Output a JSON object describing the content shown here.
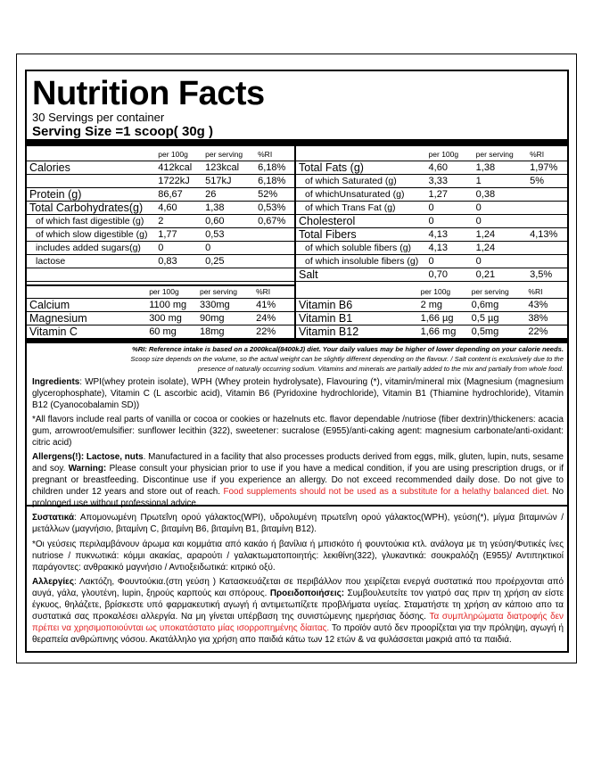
{
  "title": "Nutrition Facts",
  "servings": "30 Servings per container",
  "serving_size": "Serving Size =1 scoop( 30g )",
  "left_table": {
    "headers": [
      "",
      "per 100g",
      "per serving",
      "%RI"
    ],
    "rows": [
      {
        "type": "big",
        "cells": [
          "Calories",
          "412kcal",
          "123kcal",
          "6,18%"
        ]
      },
      {
        "type": "big",
        "cells": [
          "",
          "1722kJ",
          "517kJ",
          "6,18%"
        ]
      },
      {
        "type": "big",
        "cells": [
          "Protein (g)",
          "86,67",
          "26",
          "52%"
        ]
      },
      {
        "type": "big",
        "cells": [
          "Total Carbohydrates(g)",
          "4,60",
          "1,38",
          "0,53%"
        ]
      },
      {
        "type": "sub",
        "cells": [
          "of which fast digestible (g)",
          "2",
          "0,60",
          "0,67%"
        ]
      },
      {
        "type": "sub",
        "cells": [
          "of which slow digestible (g)",
          "1,77",
          "0,53",
          ""
        ]
      },
      {
        "type": "sub",
        "cells": [
          "includes added sugars(g)",
          "0",
          "0",
          ""
        ]
      },
      {
        "type": "sub",
        "cells": [
          "lactose",
          "0,83",
          "0,25",
          ""
        ]
      },
      {
        "type": "big",
        "cells": [
          "",
          "",
          "",
          ""
        ]
      }
    ]
  },
  "right_table": {
    "headers": [
      "",
      "per 100g",
      "per serving",
      "%RI"
    ],
    "rows": [
      {
        "type": "big",
        "cells": [
          "Total Fats (g)",
          "4,60",
          "1,38",
          "1,97%"
        ]
      },
      {
        "type": "sub",
        "cells": [
          "of which Saturated (g)",
          "3,33",
          "1",
          "5%"
        ]
      },
      {
        "type": "sub",
        "cells": [
          "of whichUnsaturated (g)",
          "1,27",
          "0,38",
          ""
        ]
      },
      {
        "type": "sub",
        "cells": [
          "of which Trans Fat (g)",
          "0",
          "0",
          ""
        ]
      },
      {
        "type": "big",
        "cells": [
          "Cholesterol",
          "0",
          "0",
          ""
        ]
      },
      {
        "type": "big",
        "cells": [
          "Total Fibers",
          "4,13",
          "1,24",
          "4,13%"
        ]
      },
      {
        "type": "sub",
        "cells": [
          "of which soluble fibers (g)",
          "4,13",
          "1,24",
          ""
        ]
      },
      {
        "type": "sub",
        "cells": [
          "of which insoluble fibers (g)",
          "0",
          "0",
          ""
        ]
      },
      {
        "type": "big",
        "cells": [
          "Salt",
          "0,70",
          "0,21",
          "3,5%"
        ]
      }
    ]
  },
  "left_vitamins": {
    "headers": [
      "",
      "per 100g",
      "per serving",
      "%RI"
    ],
    "rows": [
      {
        "type": "big",
        "cells": [
          "Calcium",
          "1100 mg",
          "330mg",
          "41%"
        ]
      },
      {
        "type": "big",
        "cells": [
          "Magnesium",
          "300 mg",
          "90mg",
          "24%"
        ]
      },
      {
        "type": "big",
        "cells": [
          "Vitamin C",
          "60 mg",
          "18mg",
          "22%"
        ]
      }
    ]
  },
  "right_vitamins": {
    "headers": [
      "",
      "per 100g",
      "per serving",
      "%RI"
    ],
    "rows": [
      {
        "type": "big",
        "cells": [
          "Vitamin B6",
          "2 mg",
          "0,6mg",
          "43%"
        ]
      },
      {
        "type": "big",
        "cells": [
          "Vitamin B1",
          "1,66 µg",
          "0,5 µg",
          "38%"
        ]
      },
      {
        "type": "big",
        "cells": [
          "Vitamin B12",
          "1,66 mg",
          "0,5mg",
          "22%"
        ]
      }
    ]
  },
  "notes": [
    "%RI: Reference intake is based on a 2000kcal(8400kJ) diet. Your daily values may be higher of lower depending on your calorie needs.",
    "Scoop size depends on the volume, so the actual weight can be slightly different depending on the flavour. / Salt content is exclusively due to the",
    "presence of naturally occurring sodium. Vitamins and minerals are partially added to the mix and partially from whole food."
  ],
  "en": {
    "ingredients_label": "Ingredients",
    "ingredients": ": WPI(whey protein isolate), WPH (Whey protein hydrolysate), Flavouring (*), vitamin/mineral mix (Magnesium (magnesium glycerophosphate), Vitamin C (L ascorbic acid), Vitamin B6 (Pyridoxine hydrochloride), Vitamin B1 (Thiamine  hydrochloride), Vitamin B12 (Cyanocobalamin SD))",
    "flavors": "*All flavors include real parts of vanilla or cocoa or cookies or hazelnuts etc. flavor dependable /nutriose (fiber dextrin)/thickeners: acacia gum, arrowroot/emulsifier: sunflower lecithin (322), sweetener: sucralose (E955)/anti-caking agent: magnesium carbonate/anti-oxidant: citric acid)",
    "allergens_label": "Allergens(!): Lactose, nuts",
    "allergens": ". Manufactured in a facility that also processes products derived from eggs, milk, gluten, lupin, nuts, sesame and soy.  ",
    "warning_label": "Warning:",
    "warning": " Please consult your physician prior to use if you have a medical condition, if you are using prescription drugs, or if pregnant or breastfeeding. Discontinue use if you experience an allergy. Do not exceed recommended daily dose. Do not give to children under 12 years and store out of reach. ",
    "warning_red": "Food supplements should not be used as a substitute for a helathy balanced diet.",
    "warning_end": " No prolonged use without professional advice."
  },
  "gr": {
    "ingredients_label": "Συστατικά",
    "ingredients": ": Απομονωμένη Πρωτεΐνη ορού γάλακτος(WPI), υδρολυμένη πρωτεΐνη ορού γάλακτος(WPH), γεύση(*), μίγμα βιταμινών / μετάλλων (μαγνήσιο, βιταμίνη C, βιταμίνη B6, βιταμίνη B1, βιταμίνη B12).",
    "flavors": "*Οι γεύσεις περιλαμβάνουν άρωμα και κομμάτια από κακάο ή βανίλια ή μπισκότο ή φουντούκια κτλ. ανάλογα με τη γεύση/Φυτικές ίνες nutriose / πυκνωτικά: κόμμι ακακίας, αραρούτι / γαλακτωματοποιητής: λεκιθίνη(322), γλυκαντικά: σουκραλόζη (E955)/ Αντιπηκτικοί παράγοντες: ανθρακικό μαγνήσιο / Αντιοξειδωτικά: κιτρικό οξύ.",
    "allergens_label": "Αλλεργίες",
    "allergens": ": Λακτόζη, Φουντούκια.(στη γεύση ) Κατασκευάζεται σε περιβάλλον που χειρίζεται ενεργά συστατικά που προέρχονται από αυγά, γάλα, γλουτένη, lupin, ξηρούς καρπούς και σπόρους. ",
    "warning_label": "Προειδοποιήσεις:",
    "warning": " Συμβουλευτείτε τον γιατρό σας πριν τη χρήση αν είστε έγκυος, θηλάζετε, βρίσκεστε υπό φαρμακευτική αγωγή ή αντιμετωπίζετε προβλήματα υγείας. Σταματήστε τη χρήση αν κάποιο απο τα συστατικά σας προκαλέσει αλλεργία. Να μη γίνεται υπέρβαση της συνιστώμενης ημερήσιας δόσης. ",
    "warning_red": "Τα συμπληρώματα διατροφής δεν πρέπει να χρησιμοποιούνται ως υποκατάστατο μίας ισορροπημένης δίαιτας.",
    "warning_end": " Το προϊόν αυτό δεν προορίζεται για την πρόληψη, αγωγή ή θεραπεία ανθρώπινης νόσου. Ακατάλληλο για χρήση απο παιδιά κάτω των 12 ετών & να φυλάσσεται μακριά από τα παιδιά."
  }
}
